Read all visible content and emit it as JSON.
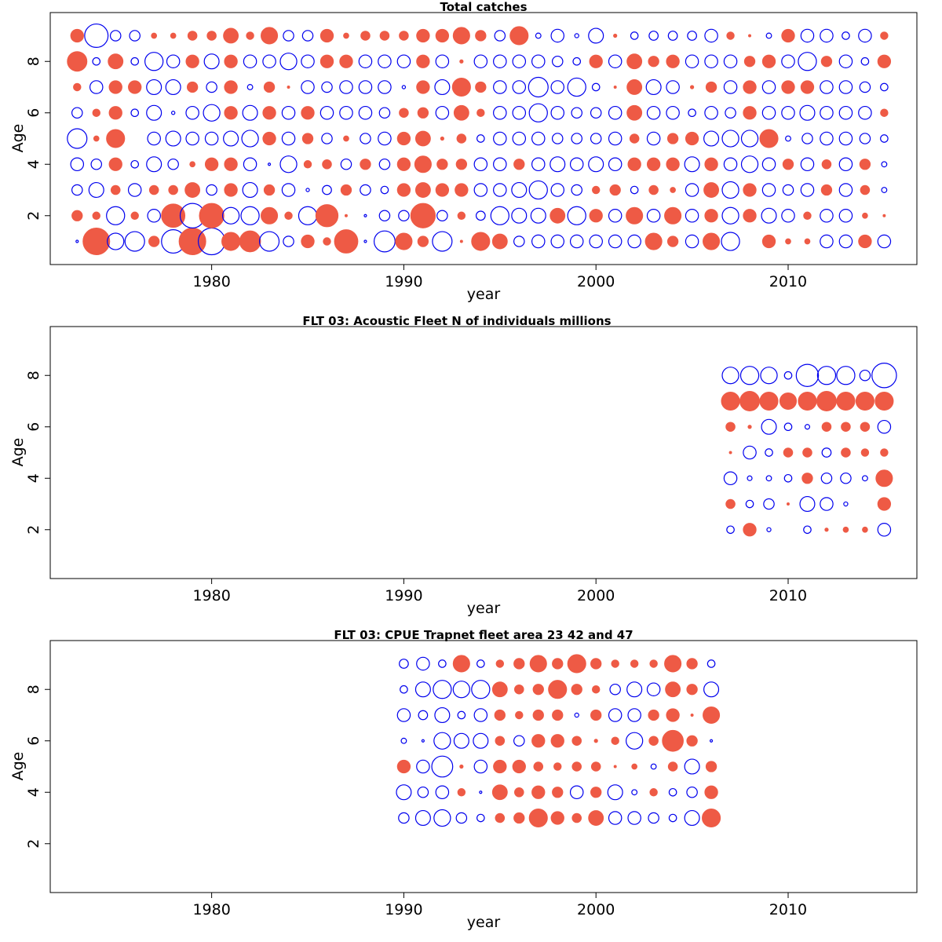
{
  "colors": {
    "positive": "#EE5A45",
    "negative": "#0000EE",
    "frame": "#000000"
  },
  "chart_data": [
    {
      "type": "bubble",
      "title": "Total catches",
      "xlabel": "year",
      "ylabel": "Age",
      "xlim": [
        1971.6,
        2016.7
      ],
      "ylim": [
        0.1,
        9.9
      ],
      "x_ticks": [
        1980,
        1990,
        2000,
        2010
      ],
      "y_ticks": [
        2,
        4,
        6,
        8
      ],
      "encoding": "values are standardized residuals; positive = filled red, negative = open blue, radius proportional to sqrt(|value|)",
      "years": [
        1973,
        1974,
        1975,
        1976,
        1977,
        1978,
        1979,
        1980,
        1981,
        1982,
        1983,
        1984,
        1985,
        1986,
        1987,
        1988,
        1989,
        1990,
        1991,
        1992,
        1993,
        1994,
        1995,
        1996,
        1997,
        1998,
        1999,
        2000,
        2001,
        2002,
        2003,
        2004,
        2005,
        2006,
        2007,
        2008,
        2009,
        2010,
        2011,
        2012,
        2013,
        2014,
        2015
      ],
      "ages": [
        1,
        2,
        3,
        4,
        5,
        6,
        7,
        8,
        9
      ],
      "residuals": [
        [
          -0.01,
          1.3,
          -0.5,
          -0.7,
          0.2,
          -1.0,
          1.3,
          -1.3,
          0.6,
          0.8,
          -0.7,
          -0.2,
          0.3,
          0.1,
          1.0,
          -0.01,
          -0.8,
          0.5,
          0.2,
          -0.7,
          0.01,
          0.6,
          0.4,
          -0.2,
          -0.3,
          -0.3,
          -0.3,
          -0.3,
          -0.3,
          -0.3,
          0.5,
          0.2,
          -0.3,
          0.5,
          -0.6,
          0,
          0.3,
          0.05,
          0.05,
          -0.3,
          -0.3,
          0.3,
          -0.3
        ],
        [
          0.2,
          0.1,
          -0.6,
          0.1,
          -0.3,
          1.0,
          -1.1,
          1.1,
          -0.5,
          -0.6,
          0.5,
          0.1,
          -0.6,
          0.9,
          0.01,
          -0.01,
          -0.2,
          -0.2,
          1.1,
          -0.2,
          0.1,
          -0.15,
          -0.6,
          -0.4,
          -0.4,
          0.4,
          -0.6,
          0.3,
          -0.3,
          0.5,
          -0.3,
          0.5,
          -0.3,
          0.3,
          -0.5,
          0.3,
          -0.4,
          -0.3,
          0.1,
          -0.3,
          -0.3,
          0.05,
          0.01
        ],
        [
          -0.2,
          -0.4,
          0.15,
          -0.3,
          0.15,
          0.15,
          0.4,
          -0.2,
          0.3,
          -0.4,
          0.2,
          -0.3,
          -0.02,
          -0.15,
          0.2,
          -0.2,
          -0.1,
          0.3,
          0.4,
          0.3,
          0.3,
          -0.3,
          -0.3,
          -0.4,
          -0.6,
          -0.3,
          -0.2,
          0.1,
          0.2,
          -0.1,
          0.15,
          0.05,
          -0.3,
          0.4,
          -0.5,
          0.3,
          -0.3,
          -0.2,
          -0.3,
          0.2,
          -0.3,
          0.15,
          -0.05
        ],
        [
          -0.3,
          -0.2,
          0.3,
          -0.1,
          -0.4,
          -0.2,
          0.05,
          0.3,
          0.3,
          -0.3,
          -0.01,
          -0.5,
          0.1,
          0.15,
          -0.2,
          0.2,
          -0.2,
          0.3,
          0.5,
          0.2,
          0.2,
          -0.3,
          -0.3,
          0.2,
          -0.3,
          -0.4,
          -0.3,
          -0.4,
          -0.3,
          0.3,
          0.3,
          0.3,
          -0.4,
          0.3,
          -0.3,
          -0.5,
          -0.3,
          0.2,
          -0.3,
          0.15,
          -0.3,
          0.2,
          -0.05
        ],
        [
          -0.7,
          0.05,
          0.6,
          0,
          -0.3,
          -0.4,
          -0.3,
          -0.3,
          -0.4,
          -0.5,
          0.3,
          -0.3,
          0.2,
          -0.2,
          0.05,
          -0.2,
          -0.3,
          0.3,
          0.4,
          0.02,
          0.15,
          -0.1,
          -0.3,
          -0.3,
          -0.3,
          -0.2,
          -0.2,
          -0.2,
          -0.3,
          0.15,
          -0.3,
          0.2,
          0.3,
          -0.4,
          -0.5,
          -0.5,
          0.6,
          -0.05,
          -0.2,
          -0.3,
          -0.3,
          -0.2,
          -0.1
        ],
        [
          -0.2,
          0.1,
          0.3,
          -0.1,
          -0.4,
          -0.02,
          -0.3,
          -0.5,
          0.3,
          -0.4,
          0.3,
          -0.3,
          0.3,
          -0.3,
          -0.3,
          -0.3,
          -0.2,
          0.15,
          0.2,
          -0.3,
          0.4,
          0.1,
          -0.3,
          -0.3,
          -0.6,
          -0.3,
          -0.2,
          -0.2,
          -0.3,
          0.4,
          -0.3,
          -0.3,
          -0.1,
          -0.3,
          -0.2,
          0.3,
          -0.3,
          -0.3,
          -0.4,
          -0.3,
          -0.3,
          -0.3,
          0.1
        ],
        [
          0.1,
          -0.3,
          0.3,
          0.3,
          -0.4,
          -0.4,
          0.2,
          -0.2,
          0.3,
          -0.05,
          0.2,
          0.01,
          -0.3,
          -0.2,
          -0.3,
          -0.3,
          -0.3,
          -0.02,
          0.3,
          -0.4,
          0.6,
          0.2,
          -0.3,
          -0.3,
          -0.7,
          -0.3,
          -0.6,
          -0.1,
          0.01,
          0.4,
          -0.4,
          -0.3,
          0.02,
          0.2,
          -0.3,
          0.3,
          -0.3,
          0.3,
          0.3,
          -0.3,
          -0.3,
          -0.2,
          -0.1
        ],
        [
          0.7,
          -0.1,
          0.4,
          -0.1,
          -0.6,
          -0.3,
          0.3,
          -0.4,
          0.3,
          -0.3,
          -0.3,
          -0.5,
          -0.3,
          0.3,
          0.3,
          -0.3,
          -0.3,
          -0.3,
          0.3,
          -0.3,
          0.02,
          -0.3,
          -0.3,
          -0.3,
          -0.3,
          -0.2,
          -0.1,
          0.3,
          -0.3,
          0.4,
          0.2,
          0.3,
          -0.3,
          -0.3,
          -0.3,
          0.2,
          0.3,
          -0.3,
          -0.6,
          0.2,
          -0.3,
          -0.1,
          0.3
        ],
        [
          0.3,
          -1.0,
          -0.2,
          -0.2,
          0.05,
          0.05,
          0.15,
          0.15,
          0.4,
          0.1,
          0.5,
          -0.2,
          -0.2,
          0.3,
          0.05,
          0.15,
          0.15,
          0.15,
          0.3,
          0.3,
          0.5,
          0.2,
          -0.2,
          0.6,
          -0.05,
          -0.3,
          -0.03,
          -0.4,
          0.02,
          -0.1,
          -0.15,
          -0.15,
          -0.15,
          -0.3,
          0.1,
          0.01,
          -0.05,
          0.3,
          -0.3,
          -0.3,
          -0.1,
          -0.3,
          0.1
        ]
      ]
    },
    {
      "type": "bubble",
      "title": "FLT 03: Acoustic Fleet N of individuals millions",
      "xlabel": "year",
      "ylabel": "Age",
      "xlim": [
        1971.6,
        2016.7
      ],
      "ylim": [
        0.1,
        9.9
      ],
      "x_ticks": [
        1980,
        1990,
        2000,
        2010
      ],
      "y_ticks": [
        2,
        4,
        6,
        8
      ],
      "encoding": "values are standardized residuals; positive = filled red, negative = open blue, radius proportional to sqrt(|value|)",
      "years": [
        2007,
        2008,
        2009,
        2010,
        2011,
        2012,
        2013,
        2014,
        2015
      ],
      "ages": [
        2,
        3,
        4,
        5,
        6,
        7,
        8
      ],
      "residuals": [
        [
          -0.1,
          0.3,
          -0.03,
          0,
          -0.1,
          0.02,
          0.05,
          0.05,
          -0.3
        ],
        [
          0.15,
          -0.1,
          -0.2,
          0.01,
          -0.4,
          -0.3,
          -0.03,
          0,
          0.3
        ],
        [
          -0.3,
          -0.04,
          -0.05,
          -0.1,
          0.2,
          -0.2,
          -0.2,
          -0.05,
          0.5
        ],
        [
          0.01,
          -0.3,
          -0.1,
          0.15,
          0.15,
          -0.15,
          0.15,
          0.1,
          0.1
        ],
        [
          0.15,
          0.02,
          -0.4,
          -0.1,
          -0.04,
          0.15,
          0.15,
          0.15,
          -0.3
        ],
        [
          0.6,
          0.7,
          0.6,
          0.5,
          0.6,
          0.7,
          0.6,
          0.6,
          0.6
        ],
        [
          -0.5,
          -0.6,
          -0.5,
          -0.1,
          -0.9,
          -0.6,
          -0.6,
          -0.2,
          -1.1
        ]
      ]
    },
    {
      "type": "bubble",
      "title": "FLT 03: CPUE Trapnet fleet area 23 42 and 47",
      "xlabel": "year",
      "ylabel": "Age",
      "xlim": [
        1971.6,
        2016.7
      ],
      "ylim": [
        0.1,
        9.9
      ],
      "x_ticks": [
        1980,
        1990,
        2000,
        2010
      ],
      "y_ticks": [
        2,
        4,
        6,
        8
      ],
      "encoding": "values are standardized residuals; positive = filled red, negative = open blue, radius proportional to sqrt(|value|)",
      "years": [
        1990,
        1991,
        1992,
        1993,
        1994,
        1995,
        1996,
        1997,
        1998,
        1999,
        2000,
        2001,
        2002,
        2003,
        2004,
        2005,
        2006
      ],
      "ages": [
        3,
        4,
        5,
        6,
        7,
        8,
        9
      ],
      "residuals": [
        [
          -0.2,
          -0.4,
          -0.5,
          -0.2,
          -0.1,
          0.15,
          0.2,
          0.6,
          0.3,
          0.15,
          0.4,
          -0.3,
          -0.3,
          -0.2,
          -0.1,
          -0.4,
          0.6
        ],
        [
          -0.4,
          -0.2,
          -0.3,
          0.1,
          -0.01,
          0.4,
          0.15,
          0.3,
          0.2,
          -0.3,
          0.2,
          -0.4,
          -0.05,
          0.1,
          -0.1,
          -0.2,
          0.3
        ],
        [
          0.3,
          -0.3,
          -0.8,
          0.02,
          -0.3,
          0.3,
          0.3,
          0.15,
          0.1,
          0.15,
          0.15,
          0.01,
          0.05,
          -0.05,
          0.15,
          -0.4,
          0.2
        ],
        [
          -0.05,
          -0.01,
          -0.5,
          -0.4,
          -0.4,
          0.15,
          -0.2,
          0.3,
          0.3,
          0.15,
          0.02,
          0.1,
          -0.5,
          0.15,
          0.8,
          0.2,
          -0.01
        ],
        [
          -0.3,
          -0.15,
          -0.4,
          -0.1,
          -0.3,
          0.2,
          0.1,
          0.2,
          0.2,
          -0.03,
          0.2,
          -0.3,
          -0.3,
          0.2,
          0.3,
          0.01,
          0.5
        ],
        [
          -0.1,
          -0.4,
          -0.6,
          -0.5,
          -0.6,
          0.4,
          0.15,
          0.2,
          0.6,
          0.2,
          0.1,
          -0.2,
          -0.4,
          -0.3,
          0.4,
          0.2,
          -0.4
        ],
        [
          -0.15,
          -0.3,
          -0.1,
          0.5,
          -0.1,
          0.1,
          0.2,
          0.5,
          0.2,
          0.6,
          0.2,
          0.1,
          0.1,
          0.1,
          0.5,
          0.2,
          -0.1
        ]
      ]
    }
  ]
}
